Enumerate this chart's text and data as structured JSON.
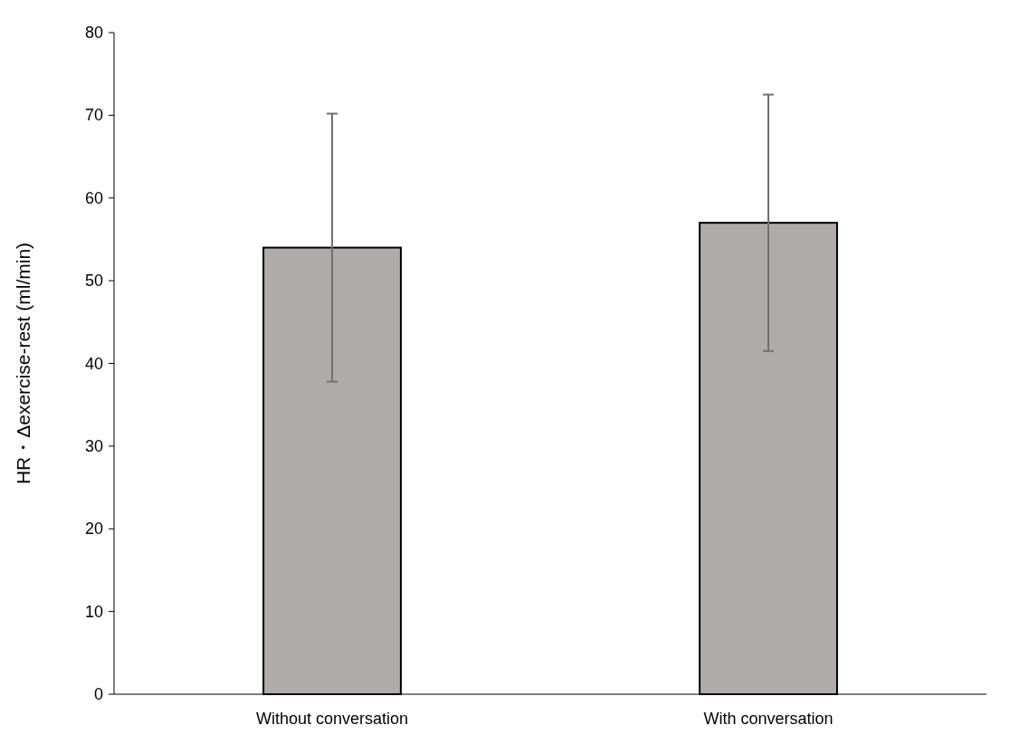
{
  "chart_data": {
    "type": "bar",
    "categories": [
      "Without conversation",
      "With conversation"
    ],
    "values": [
      54.0,
      57.0
    ],
    "errors": [
      16.2,
      15.5
    ],
    "color": "#afabab",
    "ylabel": "HR・Δexercise-rest (ml/min)",
    "ylim": [
      0,
      80
    ],
    "yticks": [
      0,
      10,
      20,
      30,
      40,
      50,
      60,
      70,
      80
    ],
    "grid": false
  }
}
